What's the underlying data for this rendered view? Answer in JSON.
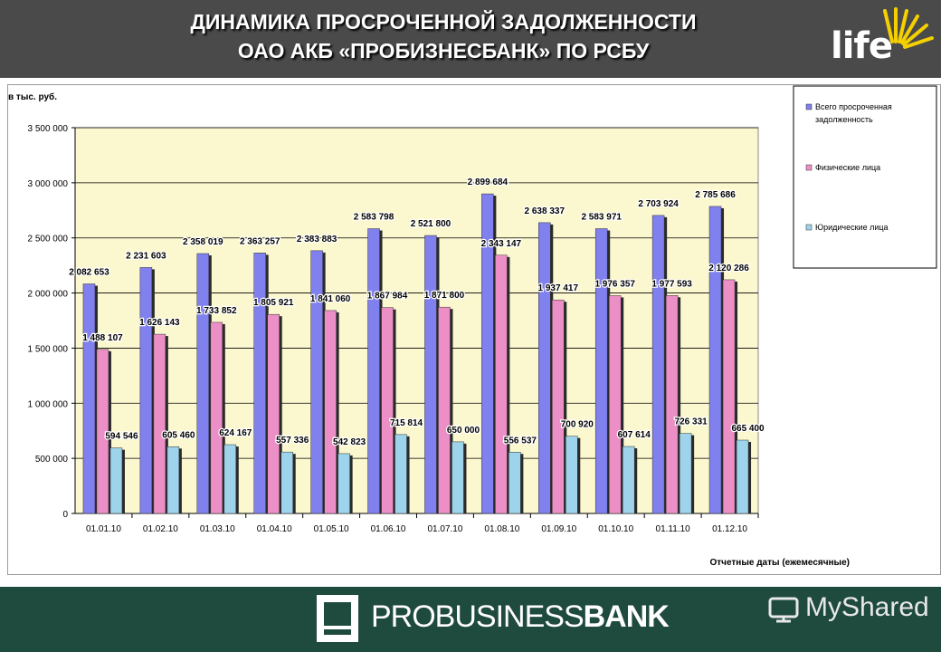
{
  "header": {
    "title_line1": "ДИНАМИКА ПРОСРОЧЕННОЙ ЗАДОЛЖЕННОСТИ",
    "title_line2": "ОАО АКБ «ПРОБИЗНЕСБАНК» ПО РСБУ",
    "logo_text": "life"
  },
  "footer": {
    "bank_name_regular": "PROBUSINESS",
    "bank_name_bold": "BANK",
    "watermark": "MyShared"
  },
  "colors": {
    "topbar": "#4a4a4a",
    "footer": "#1f4a3e",
    "plot_bg": "#fbf8cf",
    "series_total": "#8080ee",
    "series_individuals": "#ec8fc6",
    "series_legal": "#9ed3ec",
    "logo_sun": "#f5d000"
  },
  "chart_data": {
    "type": "bar",
    "ylabel": "в тыс. руб.",
    "xlabel": "Отчетные даты (ежемесячные)",
    "ylim": [
      0,
      3500000
    ],
    "yticks": [
      0,
      500000,
      1000000,
      1500000,
      2000000,
      2500000,
      3000000,
      3500000
    ],
    "ytick_labels": [
      "0",
      "500 000",
      "1 000 000",
      "1 500 000",
      "2 000 000",
      "2 500 000",
      "3 000 000",
      "3 500 000"
    ],
    "grid": true,
    "legend_position": "right",
    "categories": [
      "01.01.10",
      "01.02.10",
      "01.03.10",
      "01.04.10",
      "01.05.10",
      "01.06.10",
      "01.07.10",
      "01.08.10",
      "01.09.10",
      "01.10.10",
      "01.11.10",
      "01.12.10"
    ],
    "series": [
      {
        "name": "Всего просроченная задолженность",
        "color": "#8080ee",
        "values": [
          2082653,
          2231603,
          2358019,
          2363257,
          2383883,
          2583798,
          2521800,
          2899684,
          2638337,
          2583971,
          2703924,
          2785686
        ],
        "labels": [
          "2 082 653",
          "2 231 603",
          "2 358 019",
          "2 363 257",
          "2 383 883",
          "2 583 798",
          "2 521 800",
          "2 899 684",
          "2 638 337",
          "2 583 971",
          "2 703 924",
          "2 785 686"
        ]
      },
      {
        "name": "Физические лица",
        "color": "#ec8fc6",
        "values": [
          1488107,
          1626143,
          1733852,
          1805921,
          1841060,
          1867984,
          1871800,
          2343147,
          1937417,
          1976357,
          1977593,
          2120286
        ],
        "labels": [
          "1 488 107",
          "1 626 143",
          "1 733 852",
          "1 805 921",
          "1 841 060",
          "1 867 984",
          "1 871 800",
          "2 343 147",
          "1 937 417",
          "1 976 357",
          "1 977 593",
          "2 120 286"
        ]
      },
      {
        "name": "Юридические лица",
        "color": "#9ed3ec",
        "values": [
          594546,
          605460,
          624167,
          557336,
          542823,
          715814,
          650000,
          556537,
          700920,
          607614,
          726331,
          665400
        ],
        "labels": [
          "594 546",
          "605 460",
          "624 167",
          "557 336",
          "542 823",
          "715 814",
          "650 000",
          "556 537",
          "700 920",
          "607 614",
          "726 331",
          "665 400"
        ]
      }
    ]
  }
}
